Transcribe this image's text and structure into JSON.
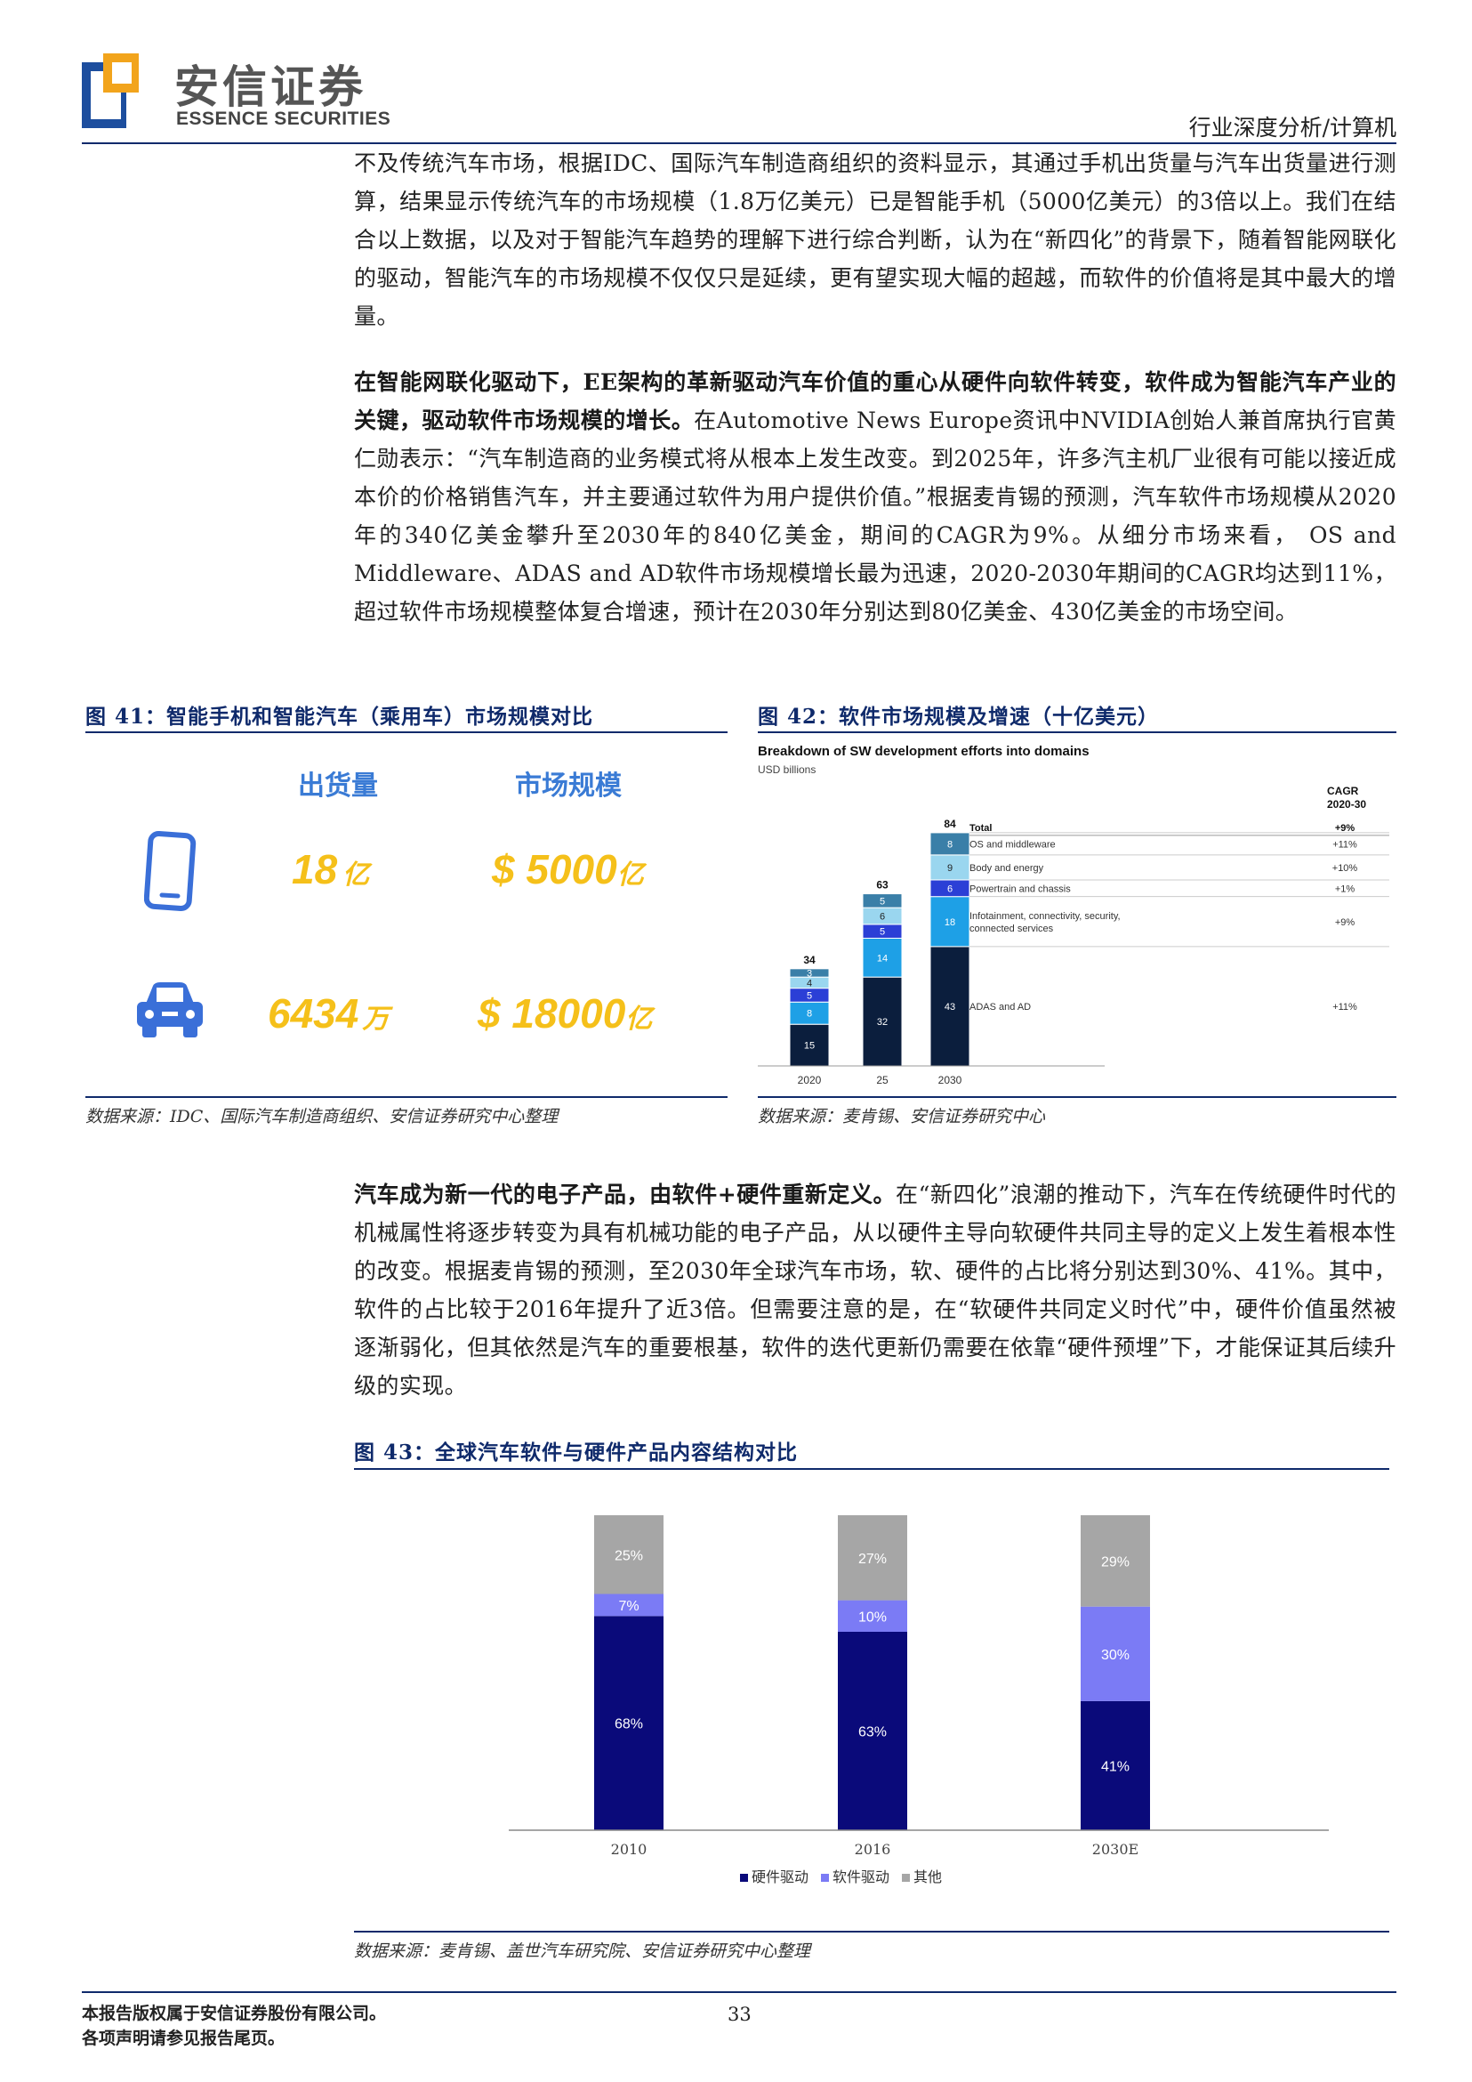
{
  "header": {
    "logo_cn": "安信证券",
    "logo_en": "ESSENCE SECURITIES",
    "section": "行业深度分析/计算机"
  },
  "paragraphs": {
    "p1": "不及传统汽车市场，根据IDC、国际汽车制造商组织的资料显示，其通过手机出货量与汽车出货量进行测算，结果显示传统汽车的市场规模（1.8万亿美元）已是智能手机（5000亿美元）的3倍以上。我们在结合以上数据，以及对于智能汽车趋势的理解下进行综合判断，认为在“新四化”的背景下，随着智能网联化的驱动，智能汽车的市场规模不仅仅只是延续，更有望实现大幅的超越，而软件的价值将是其中最大的增量。",
    "p2_bold": "在智能网联化驱动下，EE架构的革新驱动汽车价值的重心从硬件向软件转变，软件成为智能汽车产业的关键，驱动软件市场规模的增长。",
    "p2_rest": "在Automotive News Europe资讯中NVIDIA创始人兼首席执行官黄仁勋表示：“汽车制造商的业务模式将从根本上发生改变。到2025年，许多汽主机厂业很有可能以接近成本价的价格销售汽车，并主要通过软件为用户提供价值。”根据麦肯锡的预测，汽车软件市场规模从2020年的340亿美金攀升至2030年的840亿美金，期间的CAGR为9%。从细分市场来看， OS and Middleware、ADAS and AD软件市场规模增长最为迅速，2020-2030年期间的CAGR均达到11%，超过软件市场规模整体复合增速，预计在2030年分别达到80亿美金、430亿美金的市场空间。",
    "p3_bold": "汽车成为新一代的电子产品，由软件+硬件重新定义。",
    "p3_rest": "在“新四化”浪潮的推动下，汽车在传统硬件时代的机械属性将逐步转变为具有机械功能的电子产品，从以硬件主导向软硬件共同主导的定义上发生着根本性的改变。根据麦肯锡的预测，至2030年全球汽车市场，软、硬件的占比将分别达到30%、41%。其中，软件的占比较于2016年提升了近3倍。但需要注意的是，在“软硬件共同定义时代”中，硬件价值虽然被逐渐弱化，但其依然是汽车的重要根基，软件的迭代更新仍需要在依靠“硬件预埋”下，才能保证其后续升级的实现。"
  },
  "fig41": {
    "title": "图 41：智能手机和智能汽车（乘用车）市场规模对比",
    "col1": "出货量",
    "col2": "市场规模",
    "phone_volume_num": "18",
    "phone_volume_unit": "亿",
    "phone_market_num": "$ 5000",
    "phone_market_unit": "亿",
    "car_volume_num": "6434",
    "car_volume_unit": "万",
    "car_market_num": "$ 18000",
    "car_market_unit": "亿",
    "source": "数据来源：IDC、国际汽车制造商组织、安信证券研究中心整理",
    "colors": {
      "icon": "#3a6fd8",
      "value": "#f5c01a",
      "label": "#3a7bd5"
    }
  },
  "fig42": {
    "title": "图 42：软件市场规模及增速（十亿美元）",
    "chart_title": "Breakdown of SW development efforts into domains",
    "unit": "USD billions",
    "cagr_header_1": "CAGR",
    "cagr_header_2": "2020-30",
    "source": "数据来源：麦肯锡、安信证券研究中心"
  },
  "fig43": {
    "title": "图 43：全球汽车软件与硬件产品内容结构对比",
    "source": "数据来源：麦肯锡、盖世汽车研究院、安信证券研究中心整理"
  },
  "chart_data": [
    {
      "type": "bar",
      "stacked": true,
      "title": "Breakdown of SW development efforts into domains",
      "ylabel": "USD billions",
      "categories": [
        "2020",
        "25",
        "2030"
      ],
      "totals": [
        34,
        63,
        84
      ],
      "series": [
        {
          "name": "ADAS and AD",
          "values": [
            15,
            32,
            43
          ],
          "cagr": "+11%",
          "color": "#0b1e3d"
        },
        {
          "name": "Infotainment, connectivity, security, connected services",
          "values": [
            8,
            14,
            18
          ],
          "cagr": "+9%",
          "color": "#1ea0e6"
        },
        {
          "name": "Powertrain and chassis",
          "values": [
            5,
            5,
            6
          ],
          "cagr": "+1%",
          "color": "#2b3fd6"
        },
        {
          "name": "Body and energy",
          "values": [
            4,
            6,
            9
          ],
          "cagr": "+10%",
          "color": "#9ad6ef"
        },
        {
          "name": "OS and middleware",
          "values": [
            3,
            5,
            8
          ],
          "cagr": "+11%",
          "color": "#3a7fa8"
        }
      ],
      "total_label": "Total",
      "total_cagr": "+9%"
    },
    {
      "type": "bar",
      "stacked": true,
      "categories": [
        "2010",
        "2016",
        "2030E"
      ],
      "series": [
        {
          "name": "硬件驱动",
          "values": [
            68,
            63,
            41
          ],
          "labels": [
            "68%",
            "63%",
            "41%"
          ],
          "color": "#0a0a7a"
        },
        {
          "name": "软件驱动",
          "values": [
            7,
            10,
            30
          ],
          "labels": [
            "7%",
            "10%",
            "30%"
          ],
          "color": "#7b7bf5"
        },
        {
          "name": "其他",
          "values": [
            25,
            27,
            29
          ],
          "labels": [
            "25%",
            "27%",
            "29%"
          ],
          "color": "#a6a6a6"
        }
      ]
    }
  ],
  "footer": {
    "line1": "本报告版权属于安信证券股份有限公司。",
    "line2": "各项声明请参见报告尾页。",
    "page": "33"
  }
}
